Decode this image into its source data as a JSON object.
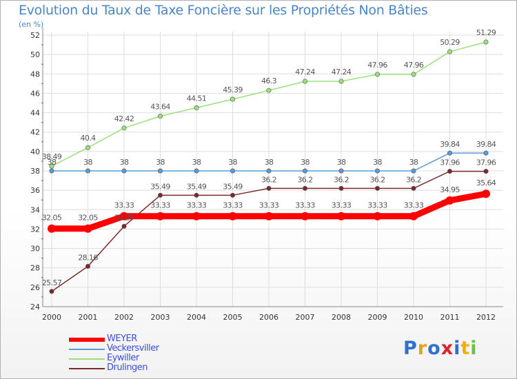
{
  "chart_data": {
    "type": "line",
    "title": "Evolution du Taux de Taxe Foncière sur les Propriétés Non Bâties",
    "ylabel": "(en %)",
    "xlabel": "",
    "ylim": [
      24,
      52
    ],
    "yticks": [
      24,
      26,
      28,
      30,
      32,
      34,
      36,
      38,
      40,
      42,
      44,
      46,
      48,
      50,
      52
    ],
    "categories": [
      "2000",
      "2001",
      "2002",
      "2003",
      "2004",
      "2005",
      "2006",
      "2007",
      "2008",
      "2009",
      "2010",
      "2011",
      "2012"
    ],
    "series": [
      {
        "name": "WEYER",
        "color": "#ff0000",
        "values": [
          32.05,
          32.05,
          33.33,
          33.33,
          33.33,
          33.33,
          33.33,
          33.33,
          33.33,
          33.33,
          33.33,
          34.95,
          35.64
        ],
        "labels": [
          "32.05",
          "32.05",
          "33.33",
          "33.33",
          "33.33",
          "33.33",
          "33.33",
          "33.33",
          "33.33",
          "33.33",
          "33.33",
          "34.95",
          "35.64"
        ]
      },
      {
        "name": "Veckersviller",
        "color": "#5b9bd5",
        "values": [
          38,
          38,
          38,
          38,
          38,
          38,
          38,
          38,
          38,
          38,
          38,
          39.84,
          39.84
        ],
        "labels": [
          "38",
          "38",
          "38",
          "38",
          "38",
          "38",
          "38",
          "38",
          "38",
          "38",
          "38",
          "39.84",
          "39.84"
        ]
      },
      {
        "name": "Eywiller",
        "color": "#9be07a",
        "values": [
          38.49,
          40.4,
          42.42,
          43.64,
          44.51,
          45.39,
          46.3,
          47.24,
          47.24,
          47.96,
          47.96,
          50.29,
          51.29
        ],
        "labels": [
          "38.49",
          "40.4",
          "42.42",
          "43.64",
          "44.51",
          "45.39",
          "46.3",
          "47.24",
          "47.24",
          "47.96",
          "47.96",
          "50.29",
          "51.29"
        ]
      },
      {
        "name": "Drulingen",
        "color": "#7a2a2a",
        "values": [
          25.57,
          28.16,
          32.29,
          35.49,
          35.49,
          35.49,
          36.2,
          36.2,
          36.2,
          36.2,
          36.2,
          37.96,
          37.96
        ],
        "labels": [
          "25.57",
          "28.16",
          "32.29",
          "35.49",
          "35.49",
          "35.49",
          "36.2",
          "36.2",
          "36.2",
          "36.2",
          "36.2",
          "37.96",
          "37.96"
        ]
      }
    ]
  },
  "brand": {
    "letters": [
      "P",
      "r",
      "o",
      "x",
      "i",
      "t",
      "i"
    ],
    "colors": [
      "#2f6fd0",
      "#e8a21a",
      "#2f6fd0",
      "#e0202a",
      "#2f6fd0",
      "#f0b000",
      "#6ac04a"
    ]
  }
}
